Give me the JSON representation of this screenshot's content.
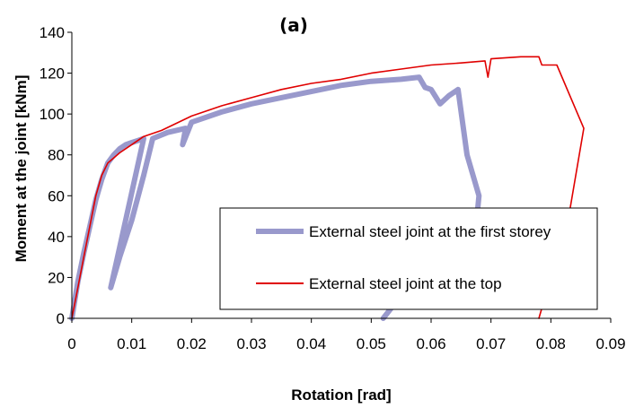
{
  "chart_data": {
    "type": "line",
    "panel_label": "(a)",
    "title": "",
    "xlabel": "Rotation [rad]",
    "ylabel": "Moment at the joint [kNm]",
    "xlim": [
      0,
      0.09
    ],
    "ylim": [
      0,
      140
    ],
    "xticks": [
      0,
      0.01,
      0.02,
      0.03,
      0.04,
      0.05,
      0.06,
      0.07,
      0.08,
      0.09
    ],
    "xtick_labels": [
      "0",
      "0.01",
      "0.02",
      "0.03",
      "0.04",
      "0.05",
      "0.06",
      "0.07",
      "0.08",
      "0.09"
    ],
    "yticks": [
      0,
      20,
      40,
      60,
      80,
      100,
      120,
      140
    ],
    "ytick_labels": [
      "0",
      "20",
      "40",
      "60",
      "80",
      "100",
      "120",
      "140"
    ],
    "grid": false,
    "legend_position": "lower-right",
    "series": [
      {
        "name": "External steel joint at the first storey",
        "color": "#9999cc",
        "points": [
          [
            0,
            0
          ],
          [
            0.001,
            18
          ],
          [
            0.002,
            32
          ],
          [
            0.003,
            45
          ],
          [
            0.004,
            58
          ],
          [
            0.005,
            68
          ],
          [
            0.006,
            76
          ],
          [
            0.007,
            80
          ],
          [
            0.008,
            83
          ],
          [
            0.009,
            85
          ],
          [
            0.01,
            86
          ],
          [
            0.011,
            87
          ],
          [
            0.012,
            88
          ],
          [
            0.0065,
            15
          ],
          [
            0.008,
            30
          ],
          [
            0.01,
            48
          ],
          [
            0.012,
            70
          ],
          [
            0.0135,
            88
          ],
          [
            0.016,
            91
          ],
          [
            0.019,
            93
          ],
          [
            0.0185,
            85
          ],
          [
            0.02,
            96
          ],
          [
            0.025,
            101
          ],
          [
            0.03,
            105
          ],
          [
            0.035,
            108
          ],
          [
            0.04,
            111
          ],
          [
            0.045,
            114
          ],
          [
            0.05,
            116
          ],
          [
            0.055,
            117
          ],
          [
            0.058,
            118
          ],
          [
            0.059,
            113
          ],
          [
            0.06,
            112
          ],
          [
            0.0615,
            105
          ],
          [
            0.063,
            109
          ],
          [
            0.0645,
            112
          ],
          [
            0.066,
            80
          ],
          [
            0.068,
            60
          ],
          [
            0.0675,
            45
          ],
          [
            0.06,
            30
          ],
          [
            0.052,
            0
          ]
        ]
      },
      {
        "name": "External steel joint at the top",
        "color": "#e00000",
        "points": [
          [
            0,
            0
          ],
          [
            0.001,
            15
          ],
          [
            0.002,
            30
          ],
          [
            0.003,
            45
          ],
          [
            0.004,
            60
          ],
          [
            0.005,
            70
          ],
          [
            0.006,
            76
          ],
          [
            0.008,
            81
          ],
          [
            0.01,
            85
          ],
          [
            0.012,
            89
          ],
          [
            0.015,
            92
          ],
          [
            0.02,
            99
          ],
          [
            0.025,
            104
          ],
          [
            0.03,
            108
          ],
          [
            0.035,
            112
          ],
          [
            0.04,
            115
          ],
          [
            0.045,
            117
          ],
          [
            0.05,
            120
          ],
          [
            0.055,
            122
          ],
          [
            0.06,
            124
          ],
          [
            0.065,
            125
          ],
          [
            0.069,
            126
          ],
          [
            0.0695,
            118
          ],
          [
            0.07,
            127
          ],
          [
            0.075,
            128
          ],
          [
            0.078,
            128
          ],
          [
            0.0785,
            124
          ],
          [
            0.081,
            124
          ],
          [
            0.0855,
            93
          ],
          [
            0.083,
            50
          ],
          [
            0.08,
            20
          ],
          [
            0.078,
            0
          ]
        ]
      }
    ]
  }
}
